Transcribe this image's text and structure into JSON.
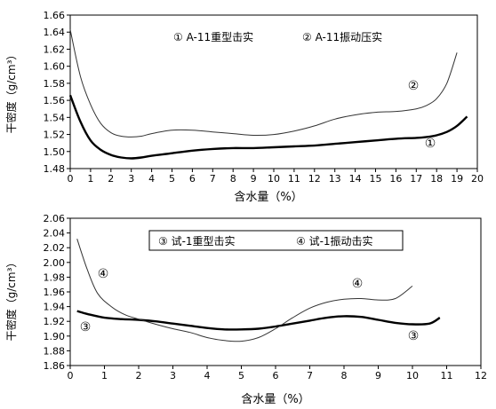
{
  "chart_data": [
    {
      "type": "line",
      "xlabel": "含水量（%）",
      "ylabel": "干密度（g/cm³）",
      "xlim": [
        0,
        20
      ],
      "ylim": [
        1.48,
        1.66
      ],
      "x_ticks": [
        "0",
        "1",
        "2",
        "3",
        "4",
        "5",
        "6",
        "7",
        "8",
        "9",
        "10",
        "11",
        "12",
        "13",
        "14",
        "15",
        "16",
        "17",
        "18",
        "19",
        "20"
      ],
      "y_ticks": [
        "1.48",
        "1.50",
        "1.52",
        "1.54",
        "1.56",
        "1.58",
        "1.60",
        "1.62",
        "1.64",
        "1.66"
      ],
      "legend": [
        "① A-11重型击实",
        "② A-11振动压实"
      ],
      "series": [
        {
          "name": "① A-11重型击实",
          "marker": "①",
          "x": [
            0,
            0.5,
            1,
            1.5,
            2,
            2.5,
            3,
            3.5,
            4,
            5,
            6,
            7,
            8,
            9,
            10,
            11,
            12,
            13,
            14,
            15,
            16,
            17,
            17.5,
            18,
            18.5,
            19,
            19.5
          ],
          "y": [
            1.566,
            1.535,
            1.513,
            1.502,
            1.496,
            1.493,
            1.492,
            1.493,
            1.495,
            1.498,
            1.501,
            1.503,
            1.504,
            1.504,
            1.505,
            1.506,
            1.507,
            1.509,
            1.511,
            1.513,
            1.515,
            1.516,
            1.517,
            1.519,
            1.523,
            1.53,
            1.541
          ]
        },
        {
          "name": "② A-11振动压实",
          "marker": "②",
          "x": [
            0,
            0.5,
            1,
            1.5,
            2,
            2.5,
            3,
            3.5,
            4,
            5,
            6,
            7,
            8,
            9,
            10,
            11,
            12,
            13,
            14,
            15,
            16,
            17,
            17.5,
            18,
            18.5,
            19
          ],
          "y": [
            1.643,
            1.588,
            1.555,
            1.533,
            1.522,
            1.518,
            1.517,
            1.518,
            1.521,
            1.525,
            1.525,
            1.523,
            1.521,
            1.519,
            1.52,
            1.524,
            1.53,
            1.538,
            1.543,
            1.546,
            1.547,
            1.55,
            1.554,
            1.562,
            1.58,
            1.616
          ]
        }
      ]
    },
    {
      "type": "line",
      "xlabel": "含水量（%）",
      "ylabel": "干密度（g/cm³）",
      "xlim": [
        0,
        12
      ],
      "ylim": [
        1.86,
        2.06
      ],
      "x_ticks": [
        "0",
        "1",
        "2",
        "3",
        "4",
        "5",
        "6",
        "7",
        "8",
        "9",
        "10",
        "11",
        "12"
      ],
      "y_ticks": [
        "1.86",
        "1.88",
        "1.90",
        "1.92",
        "1.94",
        "1.96",
        "1.98",
        "2.00",
        "2.02",
        "2.04",
        "2.06"
      ],
      "legend": [
        "③ 试-1重型击实",
        "④ 试-1振动击实"
      ],
      "series": [
        {
          "name": "③ 试-1重型击实",
          "marker": "③",
          "x": [
            0.2,
            0.5,
            1,
            1.5,
            2,
            2.5,
            3,
            3.5,
            4,
            4.5,
            5,
            5.5,
            6,
            6.5,
            7,
            7.5,
            8,
            8.5,
            9,
            9.5,
            10,
            10.5,
            10.8
          ],
          "y": [
            1.934,
            1.93,
            1.925,
            1.923,
            1.922,
            1.92,
            1.917,
            1.914,
            1.911,
            1.909,
            1.909,
            1.91,
            1.913,
            1.917,
            1.921,
            1.925,
            1.927,
            1.926,
            1.922,
            1.918,
            1.916,
            1.917,
            1.925
          ]
        },
        {
          "name": "④ 试-1振动击实",
          "marker": "④",
          "x": [
            0.2,
            0.5,
            0.8,
            1.2,
            1.6,
            2,
            2.5,
            3,
            3.5,
            4,
            4.5,
            5,
            5.5,
            6,
            6.5,
            7,
            7.5,
            8,
            8.5,
            9,
            9.5,
            10
          ],
          "y": [
            2.032,
            1.99,
            1.958,
            1.94,
            1.929,
            1.923,
            1.916,
            1.91,
            1.905,
            1.898,
            1.894,
            1.893,
            1.898,
            1.91,
            1.925,
            1.938,
            1.946,
            1.95,
            1.951,
            1.949,
            1.951,
            1.968
          ]
        }
      ]
    }
  ]
}
